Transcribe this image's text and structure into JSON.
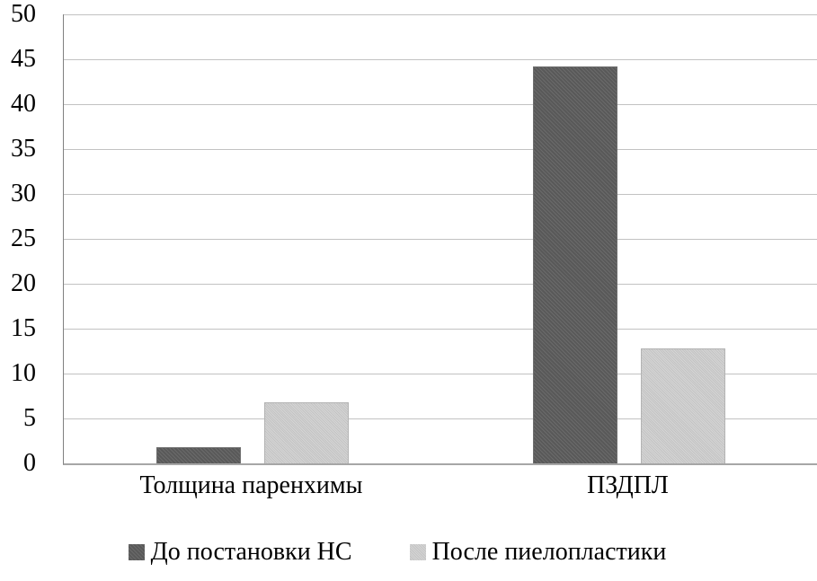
{
  "chart_data": {
    "type": "bar",
    "categories": [
      "Толщина паренхимы",
      "ПЗДПЛ"
    ],
    "series": [
      {
        "name": "До постановки НС",
        "color": "#595959",
        "values": [
          1.8,
          44.2
        ]
      },
      {
        "name": "После пиелопластики",
        "color": "#c3c3c3",
        "values": [
          6.8,
          12.8
        ]
      }
    ],
    "title": "",
    "xlabel": "",
    "ylabel": "",
    "ylim": [
      0,
      50
    ],
    "ytick_step": 5,
    "grid": true,
    "legend_position": "bottom"
  },
  "colors": {
    "series_dark": "#595959",
    "series_light": "#c3c3c3",
    "gridline": "#c2c2c2",
    "axis_left": "#808080",
    "axis_bottom": "#a6a6a6",
    "text": "#000000",
    "background": "#ffffff"
  }
}
